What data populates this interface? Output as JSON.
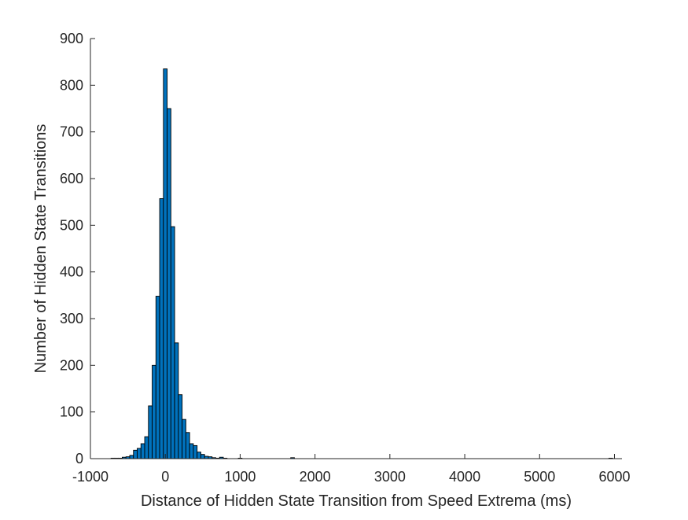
{
  "chart_data": {
    "type": "bar",
    "subtype": "histogram",
    "title": "",
    "xlabel": "Distance of Hidden State Transition from Speed Extrema (ms)",
    "ylabel": "Number of Hidden State Transitions",
    "xlim": [
      -1000,
      6100
    ],
    "ylim": [
      0,
      900
    ],
    "xticks": [
      -1000,
      0,
      1000,
      2000,
      3000,
      4000,
      5000,
      6000
    ],
    "yticks": [
      0,
      100,
      200,
      300,
      400,
      500,
      600,
      700,
      800,
      900
    ],
    "bin_width": 50,
    "bins": [
      {
        "x": -700,
        "value": 1
      },
      {
        "x": -650,
        "value": 1
      },
      {
        "x": -600,
        "value": 1
      },
      {
        "x": -550,
        "value": 3
      },
      {
        "x": -500,
        "value": 4
      },
      {
        "x": -450,
        "value": 7
      },
      {
        "x": -400,
        "value": 18
      },
      {
        "x": -350,
        "value": 22
      },
      {
        "x": -300,
        "value": 32
      },
      {
        "x": -250,
        "value": 47
      },
      {
        "x": -200,
        "value": 113
      },
      {
        "x": -150,
        "value": 200
      },
      {
        "x": -100,
        "value": 348
      },
      {
        "x": -50,
        "value": 557
      },
      {
        "x": 0,
        "value": 835
      },
      {
        "x": 50,
        "value": 750
      },
      {
        "x": 100,
        "value": 497
      },
      {
        "x": 150,
        "value": 248
      },
      {
        "x": 200,
        "value": 137
      },
      {
        "x": 250,
        "value": 84
      },
      {
        "x": 300,
        "value": 56
      },
      {
        "x": 350,
        "value": 32
      },
      {
        "x": 400,
        "value": 28
      },
      {
        "x": 450,
        "value": 14
      },
      {
        "x": 500,
        "value": 9
      },
      {
        "x": 550,
        "value": 5
      },
      {
        "x": 600,
        "value": 4
      },
      {
        "x": 650,
        "value": 2
      },
      {
        "x": 700,
        "value": 1
      },
      {
        "x": 750,
        "value": 3
      },
      {
        "x": 800,
        "value": 1
      },
      {
        "x": 1000,
        "value": 1
      },
      {
        "x": 1700,
        "value": 2
      },
      {
        "x": 5950,
        "value": 1
      }
    ],
    "grid": false,
    "bar_color": "#0072BD",
    "edge_color": "#000000"
  }
}
